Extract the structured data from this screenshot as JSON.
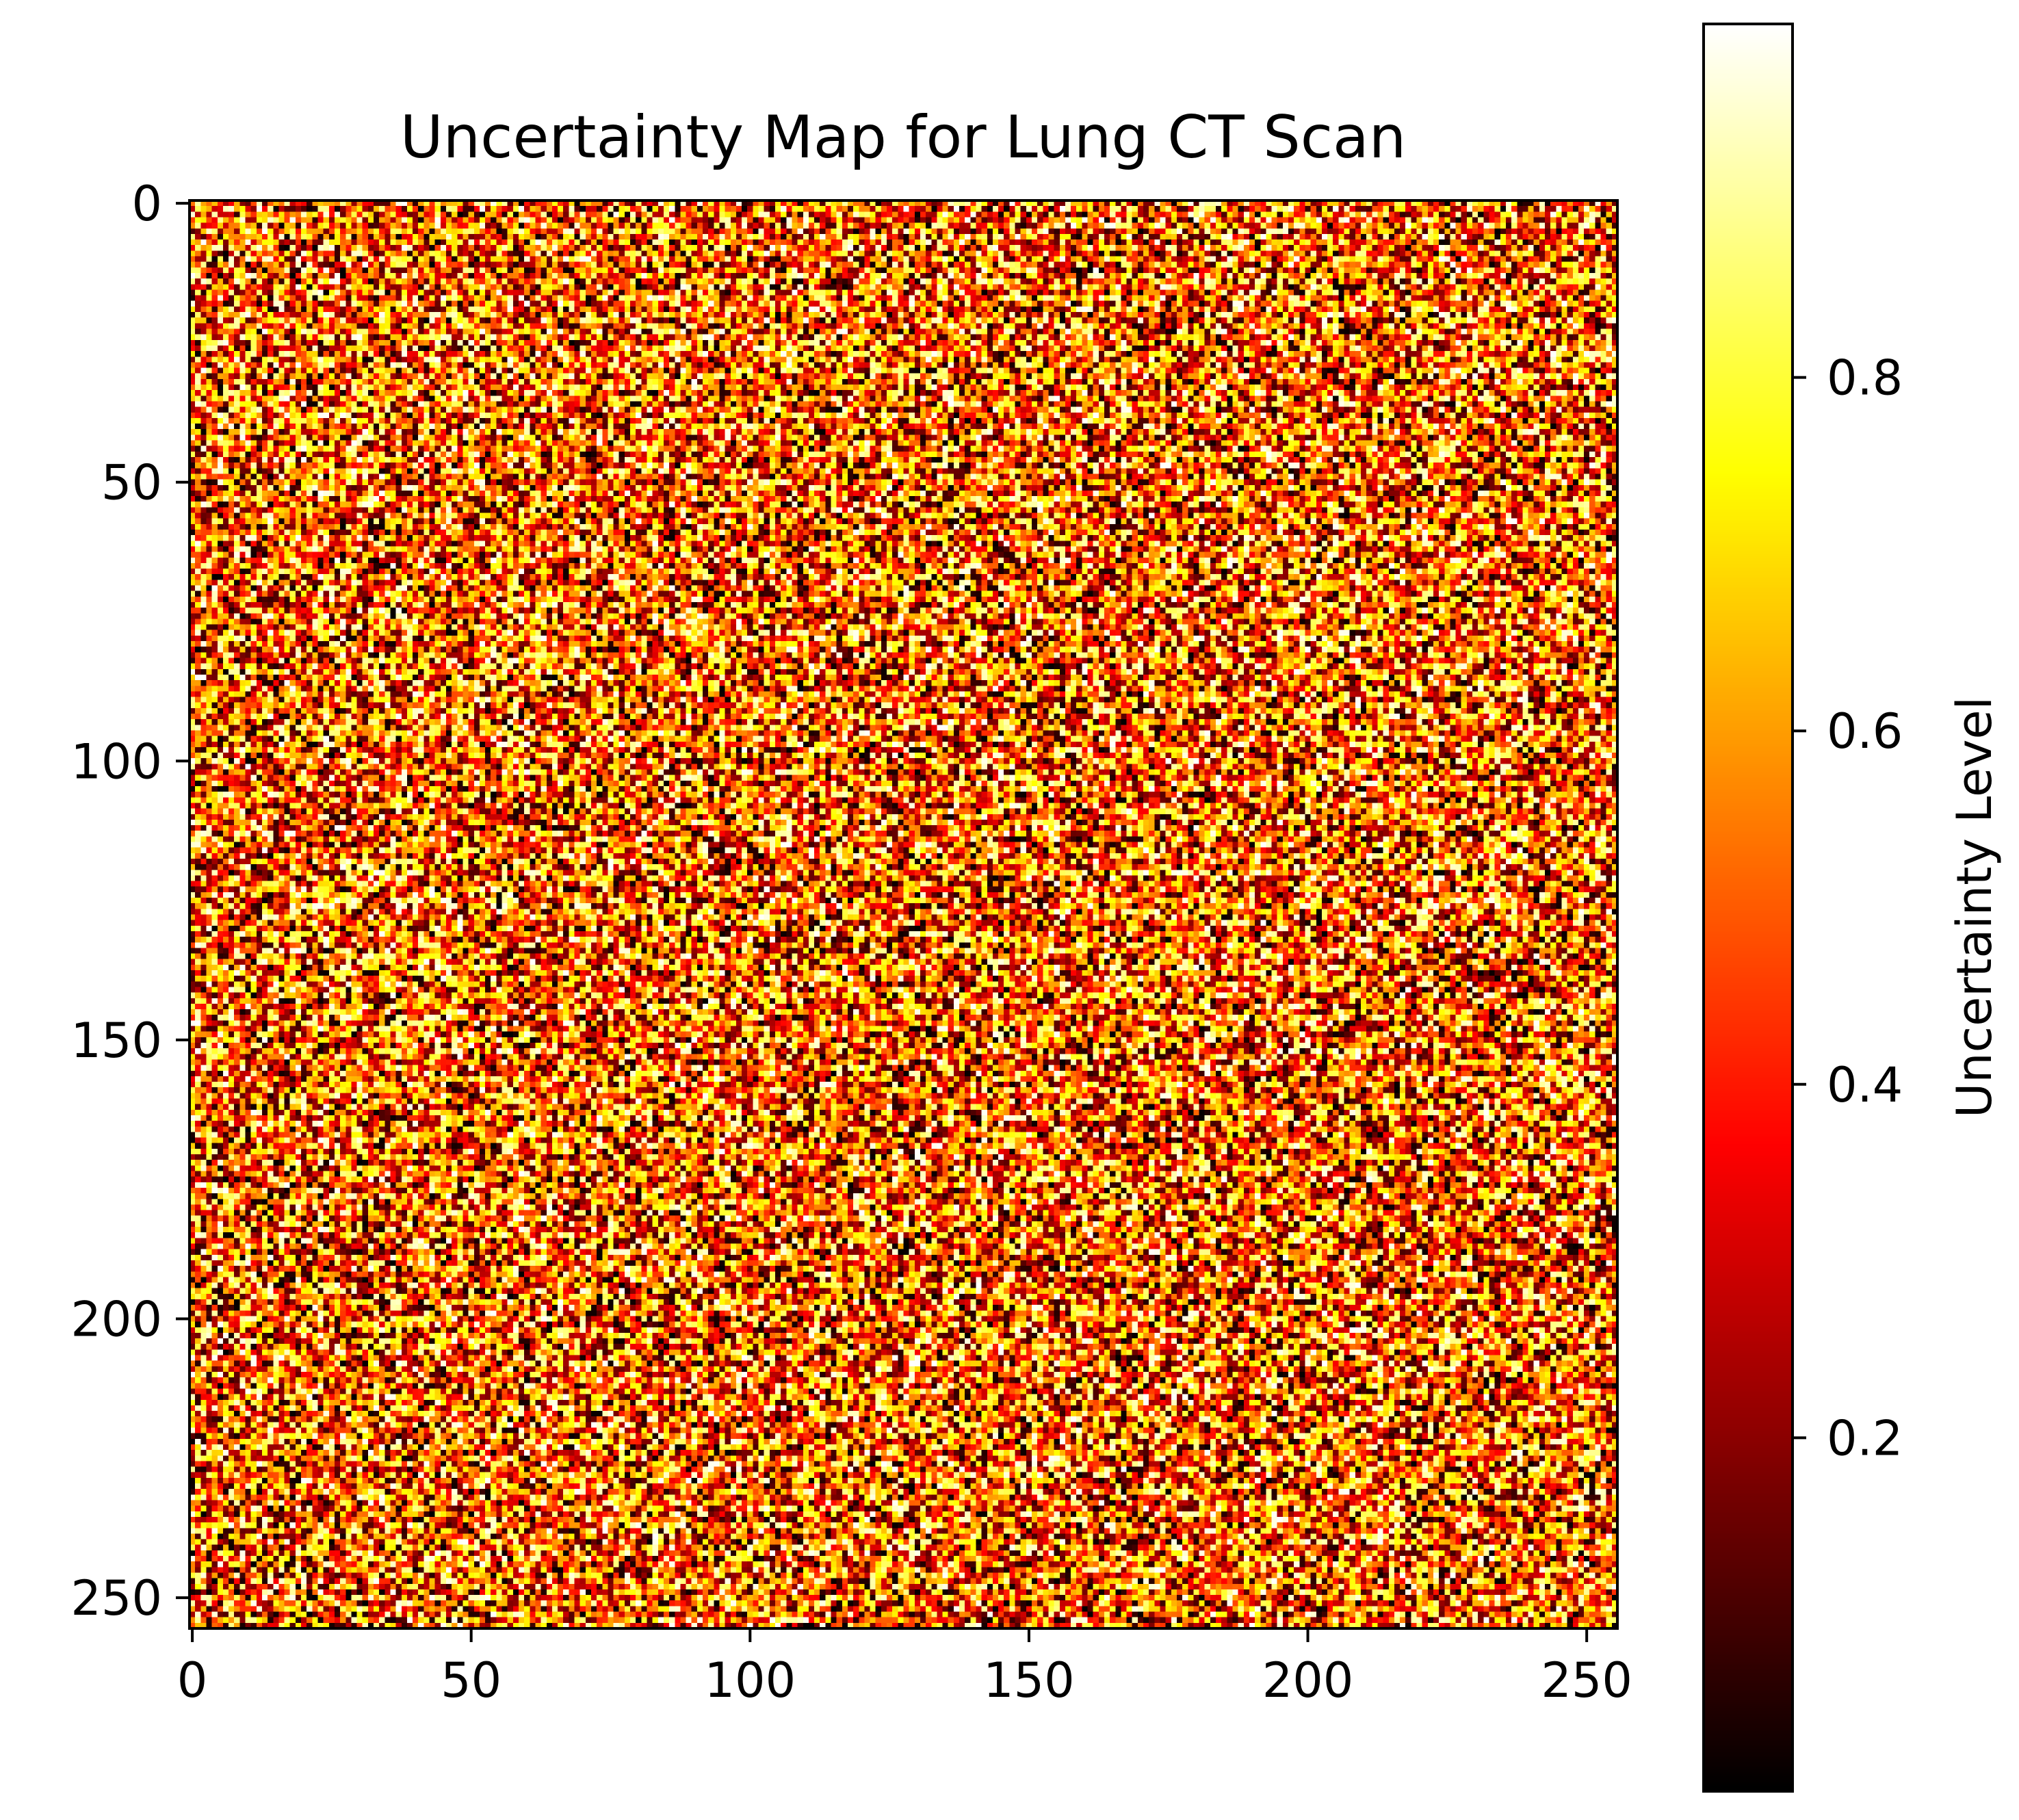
{
  "chart_data": {
    "type": "heatmap",
    "title": "Uncertainty Map for Lung CT Scan",
    "rows": 256,
    "cols": 256,
    "x_ticks": [
      0,
      50,
      100,
      150,
      200,
      250
    ],
    "y_ticks": [
      0,
      50,
      100,
      150,
      200,
      250
    ],
    "x_tick_labels": [
      "0",
      "50",
      "100",
      "150",
      "200",
      "250"
    ],
    "y_tick_labels": [
      "0",
      "50",
      "100",
      "150",
      "200",
      "250"
    ],
    "xlim": [
      -0.5,
      255.5
    ],
    "ylim": [
      255.5,
      -0.5
    ],
    "values_description_range": [
      0.0,
      1.0
    ],
    "colormap": "hot",
    "colorbar": {
      "label": "Uncertainty Level",
      "range": [
        0.0,
        1.0
      ],
      "ticks": [
        0.2,
        0.4,
        0.6,
        0.8
      ],
      "tick_labels": [
        "0.2",
        "0.4",
        "0.6",
        "0.8"
      ]
    },
    "xlabel": "",
    "ylabel": ""
  }
}
